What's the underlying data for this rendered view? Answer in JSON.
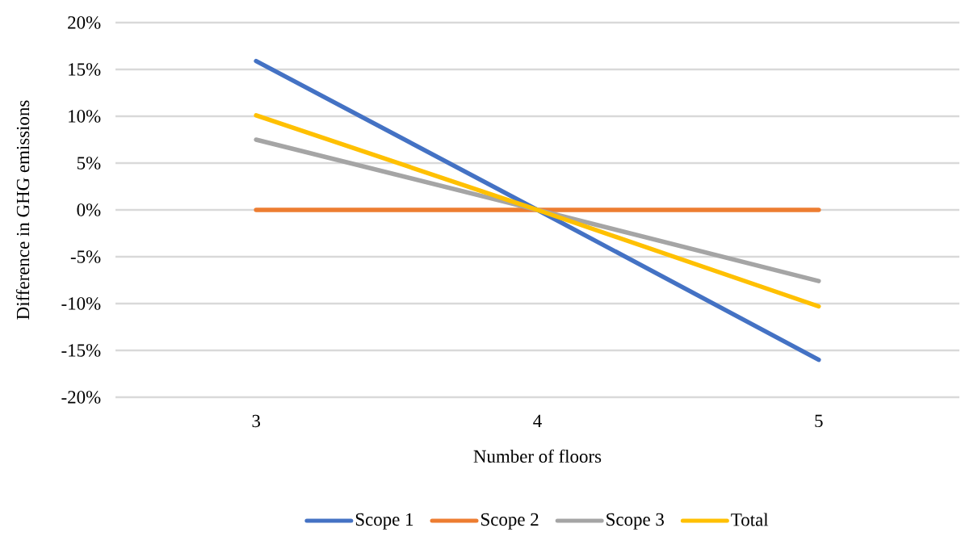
{
  "chart_data": {
    "type": "line",
    "xlabel": "Number of floors",
    "ylabel": "Difference in GHG emissions",
    "categories": [
      "3",
      "4",
      "5"
    ],
    "series": [
      {
        "name": "Scope 1",
        "color": "#4472c4",
        "values": [
          15.9,
          0,
          -16.0
        ]
      },
      {
        "name": "Scope 2",
        "color": "#ed7d31",
        "values": [
          0,
          0,
          0
        ]
      },
      {
        "name": "Scope 3",
        "color": "#a5a5a5",
        "values": [
          7.5,
          0,
          -7.6
        ]
      },
      {
        "name": "Total",
        "color": "#ffc000",
        "values": [
          10.1,
          0,
          -10.3
        ]
      }
    ],
    "ylim": [
      -20,
      20
    ],
    "yticks": [
      {
        "value": -20,
        "label": "-20%"
      },
      {
        "value": -15,
        "label": "-15%"
      },
      {
        "value": -10,
        "label": "-10%"
      },
      {
        "value": -5,
        "label": "-5%"
      },
      {
        "value": 0,
        "label": "0%"
      },
      {
        "value": 5,
        "label": "5%"
      },
      {
        "value": 10,
        "label": "10%"
      },
      {
        "value": 15,
        "label": "15%"
      },
      {
        "value": 20,
        "label": "20%"
      }
    ],
    "grid": "y",
    "legend": "bottom",
    "marker": "none",
    "line_style": "solid"
  }
}
